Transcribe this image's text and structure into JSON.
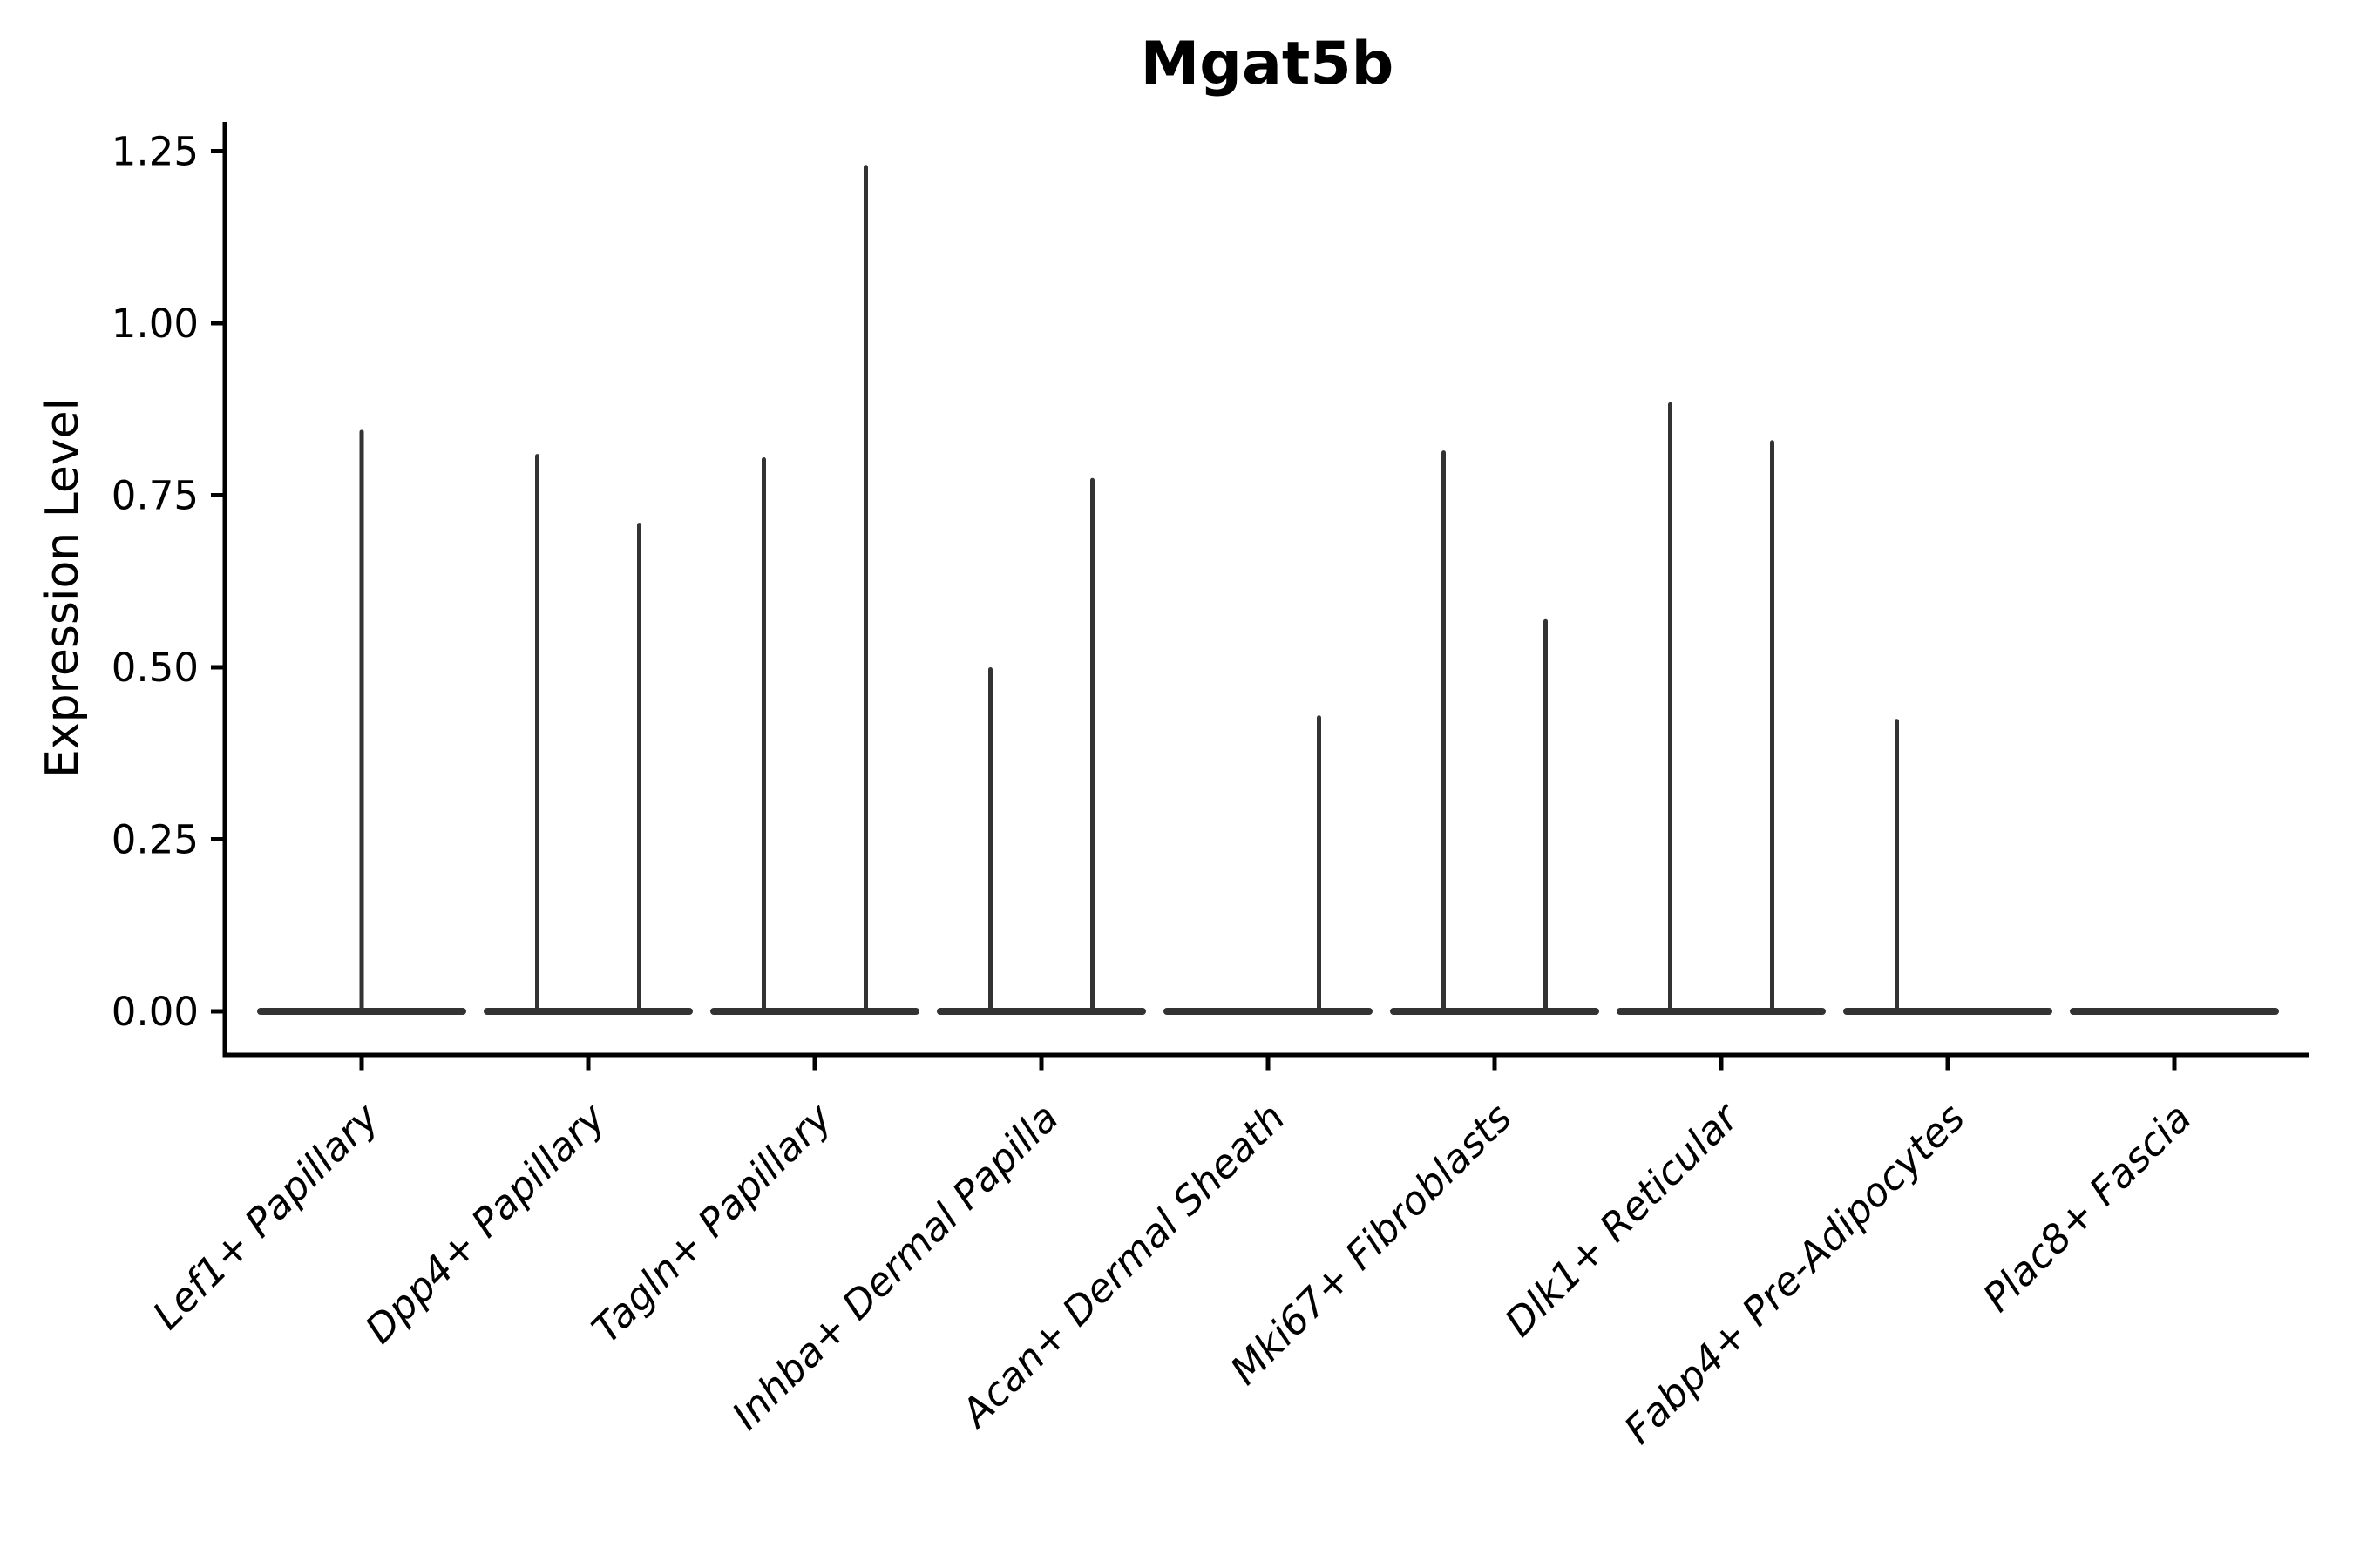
{
  "chart_data": {
    "type": "violin",
    "title": "Mgat5b",
    "xlabel": "",
    "ylabel": "Expression Level",
    "ylim": [
      0,
      1.25
    ],
    "yticks": [
      "0.00",
      "0.25",
      "0.50",
      "0.75",
      "1.00",
      "1.25"
    ],
    "grid": false,
    "legend": "none",
    "ink_color": "#333333",
    "axis_color": "#000000",
    "background_color": "#ffffff",
    "description": "Violin plot of Mgat5b expression per fibroblast cluster; each violin collapses to a wide flat density at 0 with thin vertical spikes reaching the maximum expression of rare positive cells. Categories with two spikes contain two side-by-side violins (left/right groups); Plac8+ Fascia has no expressing cells.",
    "categories": [
      "Lef1+ Papillary",
      "Dpp4+ Papillary",
      "Tagln+ Papillary",
      "Inhba+ Dermal Papilla",
      "Acan+ Dermal Sheath",
      "Mki67+ Fibroblasts",
      "Dlk1+ Reticular",
      "Fabp4+ Pre-Adipocytes",
      "Plac8+ Fascia"
    ],
    "series": [
      {
        "category": "Lef1+ Papillary",
        "base_at_zero": true,
        "spikes": [
          {
            "side": "center",
            "max": 0.845
          }
        ]
      },
      {
        "category": "Dpp4+ Papillary",
        "base_at_zero": true,
        "spikes": [
          {
            "side": "left",
            "max": 0.81
          },
          {
            "side": "right",
            "max": 0.71
          }
        ]
      },
      {
        "category": "Tagln+ Papillary",
        "base_at_zero": true,
        "spikes": [
          {
            "side": "left",
            "max": 0.805
          },
          {
            "side": "right",
            "max": 1.23
          }
        ]
      },
      {
        "category": "Inhba+ Dermal Papilla",
        "base_at_zero": true,
        "spikes": [
          {
            "side": "left",
            "max": 0.5
          },
          {
            "side": "right",
            "max": 0.775
          }
        ]
      },
      {
        "category": "Acan+ Dermal Sheath",
        "base_at_zero": true,
        "spikes": [
          {
            "side": "right",
            "max": 0.43
          }
        ]
      },
      {
        "category": "Mki67+ Fibroblasts",
        "base_at_zero": true,
        "spikes": [
          {
            "side": "left",
            "max": 0.815
          },
          {
            "side": "right",
            "max": 0.57
          }
        ]
      },
      {
        "category": "Dlk1+ Reticular",
        "base_at_zero": true,
        "spikes": [
          {
            "side": "left",
            "max": 0.885
          },
          {
            "side": "right",
            "max": 0.83
          }
        ]
      },
      {
        "category": "Fabp4+ Pre-Adipocytes",
        "base_at_zero": true,
        "spikes": [
          {
            "side": "left",
            "max": 0.425
          }
        ]
      },
      {
        "category": "Plac8+ Fascia",
        "base_at_zero": true,
        "spikes": []
      }
    ]
  }
}
